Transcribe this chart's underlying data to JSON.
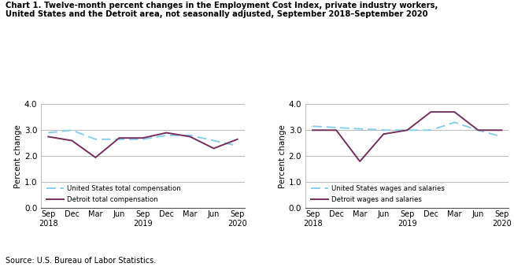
{
  "x_labels": [
    "Sep\n2018",
    "Dec",
    "Mar",
    "Jun",
    "Sep\n2019",
    "Dec",
    "Mar",
    "Jun",
    "Sep\n2020"
  ],
  "x_ticks": [
    0,
    1,
    2,
    3,
    4,
    5,
    6,
    7,
    8
  ],
  "left_us": [
    2.9,
    3.0,
    2.65,
    2.65,
    2.65,
    2.8,
    2.8,
    2.6,
    2.4
  ],
  "left_det": [
    2.75,
    2.6,
    1.95,
    2.7,
    2.7,
    2.9,
    2.75,
    2.3,
    2.65
  ],
  "right_us": [
    3.15,
    3.1,
    3.05,
    3.0,
    3.0,
    3.0,
    3.3,
    3.0,
    2.75
  ],
  "right_det": [
    3.0,
    3.0,
    1.8,
    2.85,
    3.0,
    3.7,
    3.7,
    3.0,
    3.0
  ],
  "us_color": "#87CEEB",
  "det_color": "#722F5B",
  "ylim": [
    0.0,
    4.0
  ],
  "yticks": [
    0.0,
    1.0,
    2.0,
    3.0,
    4.0
  ],
  "left_legend1": "United States total compensation",
  "left_legend2": "Detroit total compensation",
  "right_legend1": "United States wages and salaries",
  "right_legend2": "Detroit wages and salaries",
  "ylabel": "Percent change",
  "title_line1": "Chart 1. Twelve-month percent changes in the Employment Cost Index, private industry workers,",
  "title_line2": "United States and the Detroit area, not seasonally adjusted, September 2018–September 2020",
  "source": "Source: U.S. Bureau of Labor Statistics."
}
